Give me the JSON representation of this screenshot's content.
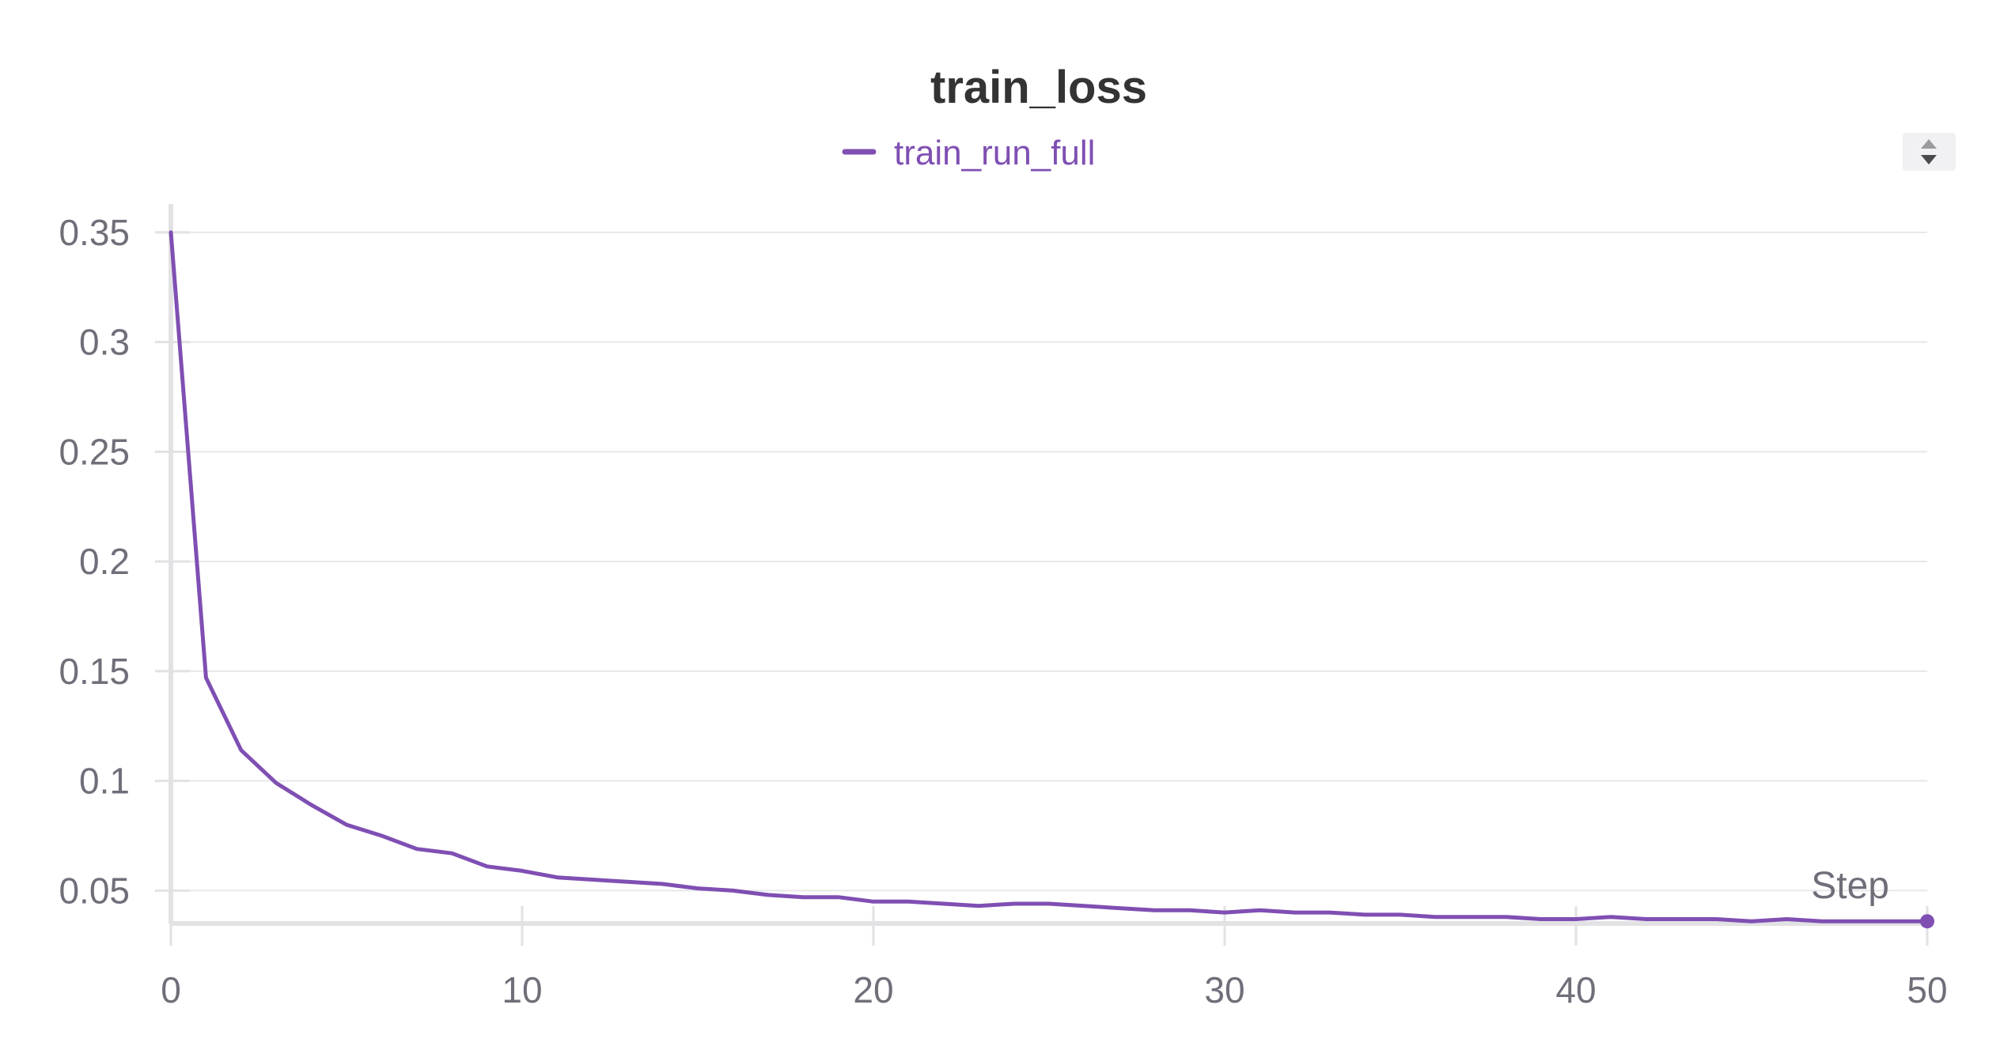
{
  "chart_data": {
    "type": "line",
    "title": "train_loss",
    "xlabel": "Step",
    "ylabel": "",
    "xlim": [
      0,
      50
    ],
    "ylim": [
      0.035,
      0.355
    ],
    "xticks": [
      0,
      10,
      20,
      30,
      40,
      50
    ],
    "xtick_labels": [
      "0",
      "10",
      "20",
      "30",
      "40",
      "50"
    ],
    "yticks": [
      0.05,
      0.1,
      0.15,
      0.2,
      0.25,
      0.3,
      0.35
    ],
    "ytick_labels": [
      "0.05",
      "0.1",
      "0.15",
      "0.2",
      "0.25",
      "0.3",
      "0.35"
    ],
    "grid": true,
    "legend_position": "top-center",
    "series": [
      {
        "name": "train_run_full",
        "color": "#7f4fb3",
        "x": [
          0,
          1,
          2,
          3,
          4,
          5,
          6,
          7,
          8,
          9,
          10,
          11,
          12,
          13,
          14,
          15,
          16,
          17,
          18,
          19,
          20,
          21,
          22,
          23,
          24,
          25,
          26,
          27,
          28,
          29,
          30,
          31,
          32,
          33,
          34,
          35,
          36,
          37,
          38,
          39,
          40,
          41,
          42,
          43,
          44,
          45,
          46,
          47,
          48,
          49,
          50
        ],
        "y": [
          0.35,
          0.147,
          0.114,
          0.099,
          0.089,
          0.08,
          0.075,
          0.069,
          0.067,
          0.061,
          0.059,
          0.056,
          0.055,
          0.054,
          0.053,
          0.051,
          0.05,
          0.048,
          0.047,
          0.047,
          0.045,
          0.045,
          0.044,
          0.043,
          0.044,
          0.044,
          0.043,
          0.042,
          0.041,
          0.041,
          0.04,
          0.041,
          0.04,
          0.04,
          0.039,
          0.039,
          0.038,
          0.038,
          0.038,
          0.037,
          0.037,
          0.038,
          0.037,
          0.037,
          0.037,
          0.036,
          0.037,
          0.036,
          0.036,
          0.036,
          0.036
        ]
      }
    ]
  },
  "icons": {
    "sort_toggle": "sort-up-down-icon"
  }
}
